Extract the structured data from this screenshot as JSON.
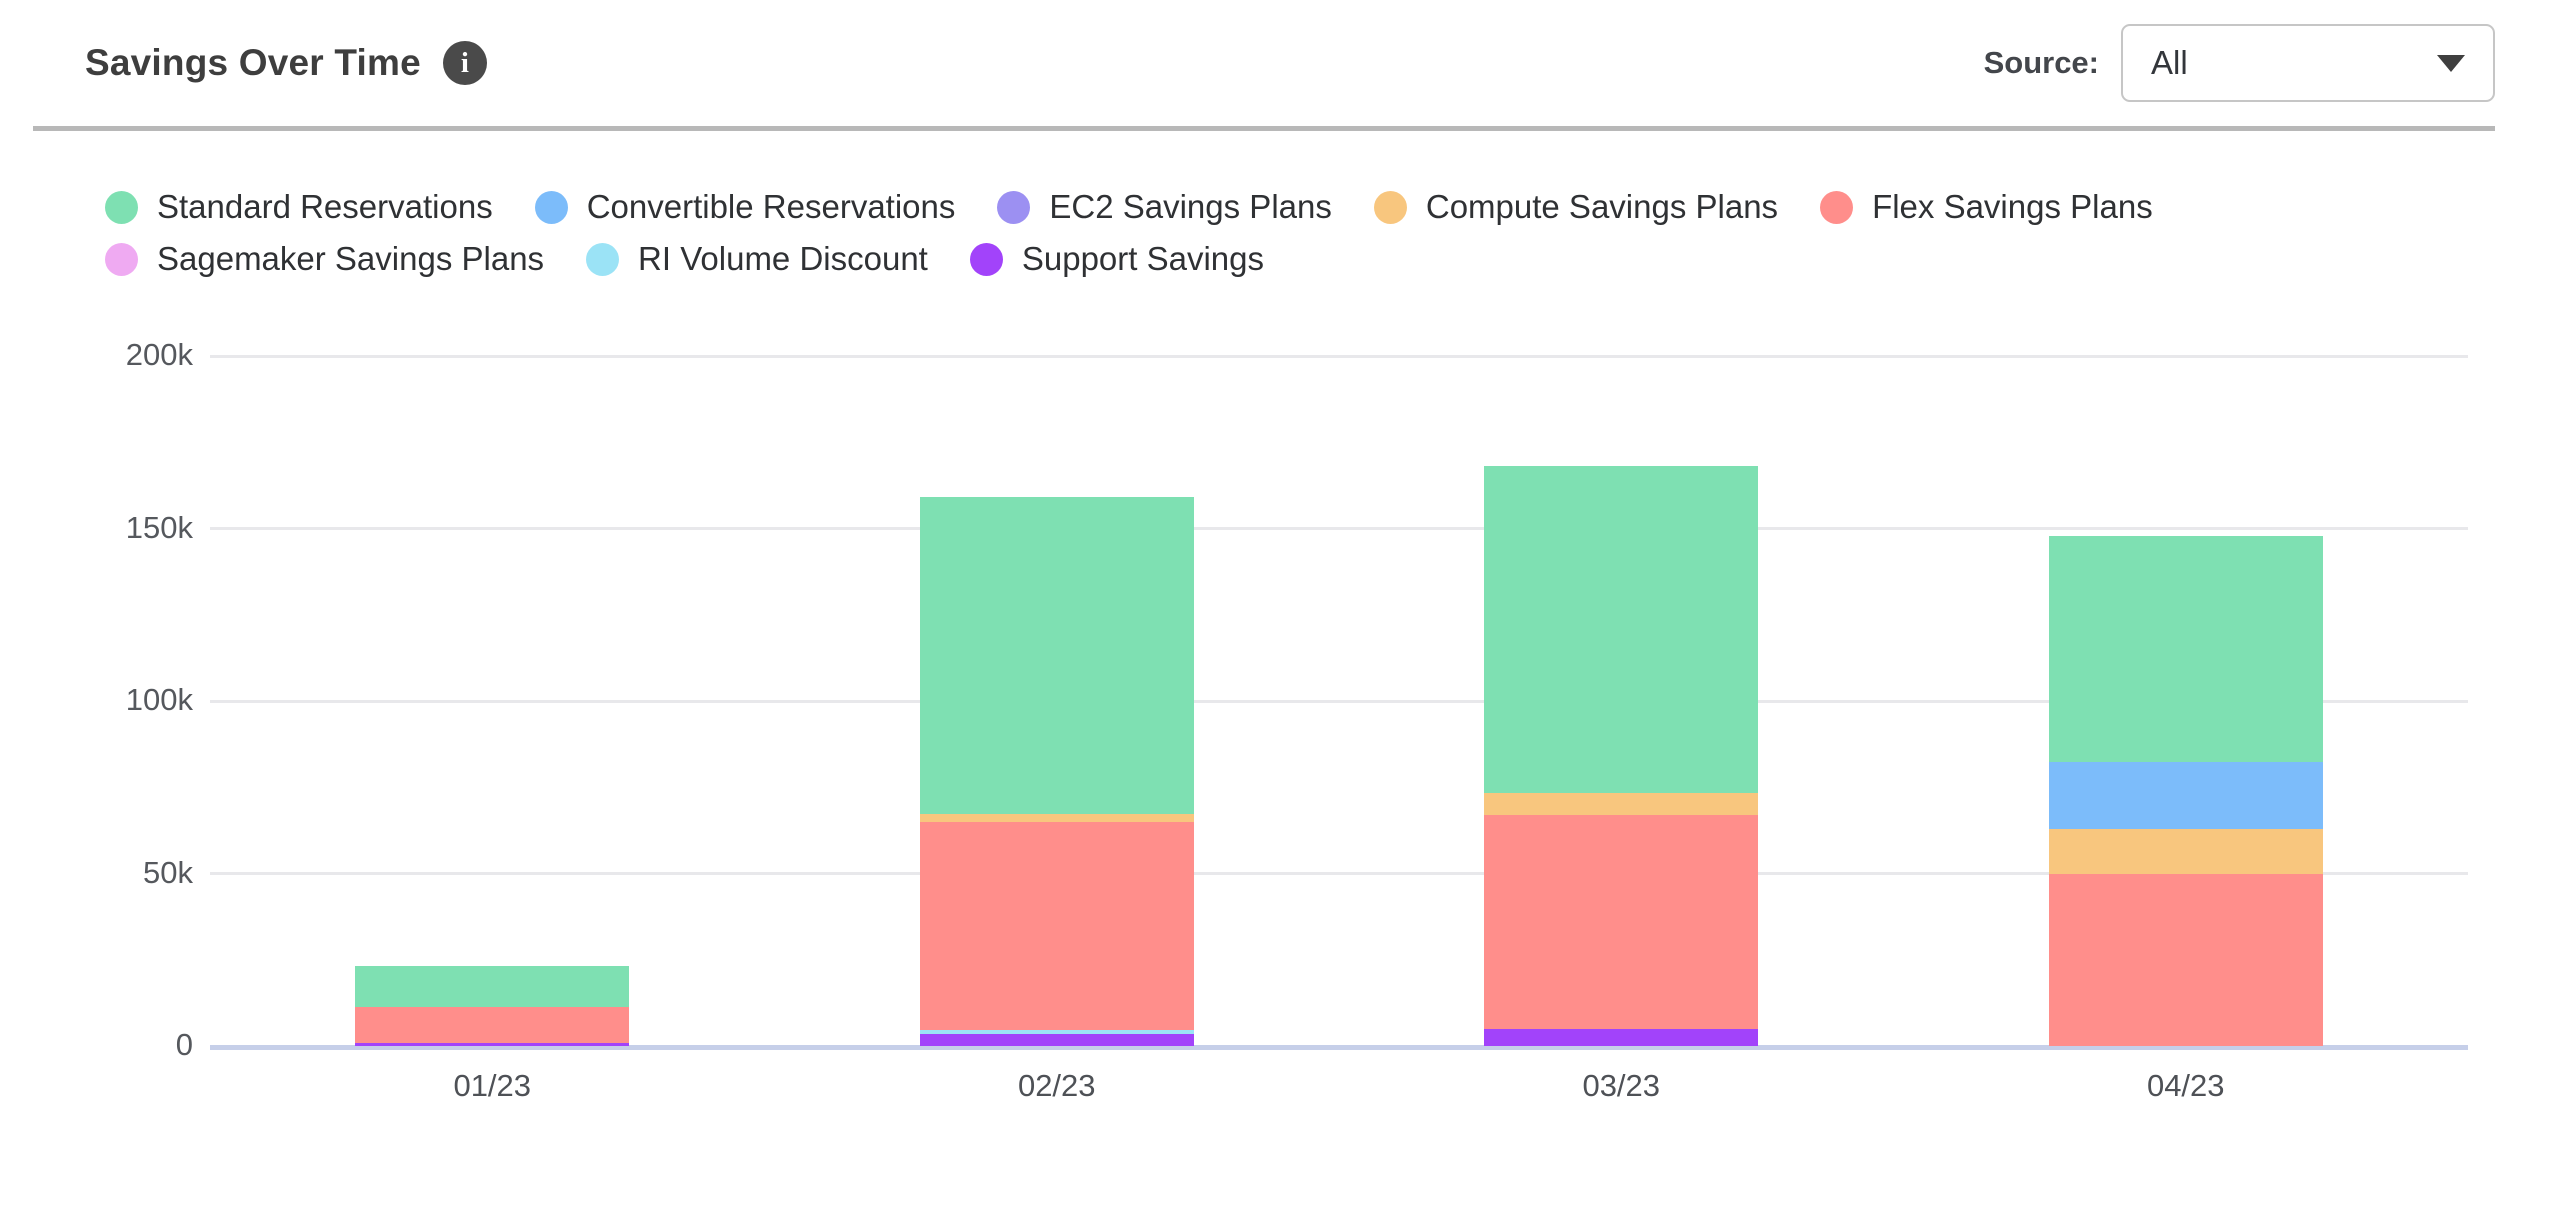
{
  "header": {
    "title": "Savings Over Time",
    "info_glyph": "i",
    "source_label": "Source:",
    "source_value": "All"
  },
  "icons": {
    "info_icon": "info-icon",
    "chevron_down": "chevron-down-icon"
  },
  "colors": {
    "axis_line": "#c6cfe9",
    "gridline": "#e8e8eb",
    "header_border": "#b8b8b8"
  },
  "chart_data": {
    "type": "bar",
    "stacked": true,
    "title": "Savings Over Time",
    "xlabel": "",
    "ylabel": "",
    "grid": true,
    "legend_position": "top-left",
    "categories": [
      "01/23",
      "02/23",
      "03/23",
      "04/23"
    ],
    "series": [
      {
        "name": "Standard Reservations",
        "color": "#7ee0b2",
        "values": [
          12000,
          91700,
          94800,
          65500
        ]
      },
      {
        "name": "Convertible Reservations",
        "color": "#7cbcfa",
        "values": [
          0,
          0,
          0,
          19500
        ]
      },
      {
        "name": "EC2 Savings Plans",
        "color": "#9c90f2",
        "values": [
          0,
          0,
          0,
          0
        ]
      },
      {
        "name": "Compute Savings Plans",
        "color": "#f8c67e",
        "values": [
          0,
          2500,
          6300,
          12900
        ]
      },
      {
        "name": "Flex Savings Plans",
        "color": "#ff8e8b",
        "values": [
          10200,
          60300,
          62200,
          50000
        ]
      },
      {
        "name": "Sagemaker Savings Plans",
        "color": "#efaaf2",
        "values": [
          0,
          0,
          0,
          0
        ]
      },
      {
        "name": "RI Volume Discount",
        "color": "#9be3f6",
        "values": [
          0,
          1100,
          0,
          0
        ]
      },
      {
        "name": "Support Savings",
        "color": "#a243fa",
        "values": [
          1000,
          3500,
          4900,
          0
        ]
      }
    ],
    "stack_note": "segments stack bottom-to-top in reverse of series order (Support Savings at bottom, Standard Reservations on top)",
    "totals": [
      23200,
      159100,
      168200,
      147900
    ],
    "y_ticks": [
      {
        "value": 0,
        "label": "0"
      },
      {
        "value": 50000,
        "label": "50k"
      },
      {
        "value": 100000,
        "label": "100k"
      },
      {
        "value": 150000,
        "label": "150k"
      },
      {
        "value": 200000,
        "label": "200k"
      }
    ],
    "ylim": [
      0,
      200000
    ]
  }
}
